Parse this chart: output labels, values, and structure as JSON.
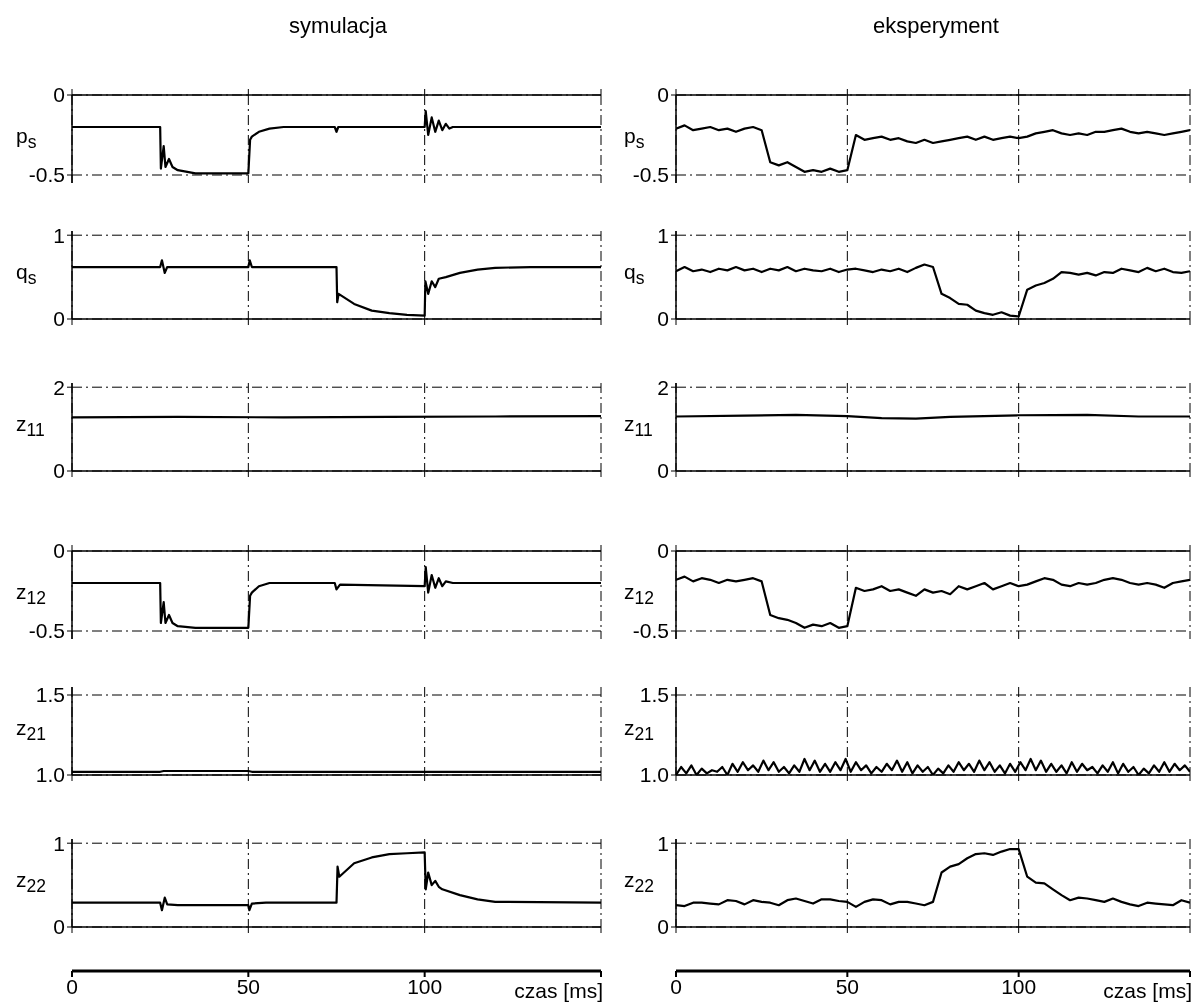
{
  "chart_data": [
    {
      "type": "line",
      "title": "symulacja",
      "ylabel": "p$_{s}$",
      "color": "#000000",
      "grid": true,
      "tick_labels": "y",
      "xlim": [
        0,
        150
      ],
      "xticks": [
        {
          "value": 0,
          "label": null
        },
        {
          "value": 50,
          "label": null
        },
        {
          "value": 100,
          "label": null
        },
        {
          "value": 150,
          "label": null
        }
      ],
      "ylim": [
        -0.55,
        0
      ],
      "yticks": [
        -0.5,
        0
      ],
      "x": [
        0,
        25,
        25.2,
        26,
        26.5,
        27.5,
        28.5,
        30,
        35,
        50,
        50.5,
        51,
        53,
        56,
        60,
        74.5,
        75,
        75.5,
        100,
        100.3,
        101,
        102,
        103,
        104,
        105,
        106,
        107,
        108,
        150
      ],
      "values": [
        -0.2,
        -0.2,
        -0.46,
        -0.32,
        -0.45,
        -0.4,
        -0.45,
        -0.47,
        -0.49,
        -0.49,
        -0.28,
        -0.26,
        -0.23,
        -0.21,
        -0.2,
        -0.2,
        -0.23,
        -0.2,
        -0.2,
        -0.1,
        -0.25,
        -0.14,
        -0.23,
        -0.16,
        -0.22,
        -0.18,
        -0.21,
        -0.2,
        -0.2
      ]
    },
    {
      "type": "line",
      "ylabel": "q$_{s}$",
      "color": "#000000",
      "grid": true,
      "tick_labels": "y",
      "xlim": [
        0,
        150
      ],
      "xticks": [
        {
          "value": 0,
          "label": null
        },
        {
          "value": 50,
          "label": null
        },
        {
          "value": 100,
          "label": null
        },
        {
          "value": 150,
          "label": null
        }
      ],
      "ylim": [
        0,
        1.05
      ],
      "yticks": [
        0,
        1
      ],
      "x": [
        0,
        25,
        25.5,
        26.3,
        27,
        50,
        50.4,
        51,
        75,
        75.2,
        75.6,
        80,
        85,
        90,
        95,
        100,
        100.2,
        101,
        102,
        103,
        104,
        106,
        110,
        115,
        120,
        130,
        150
      ],
      "values": [
        0.62,
        0.62,
        0.7,
        0.55,
        0.62,
        0.62,
        0.7,
        0.62,
        0.62,
        0.2,
        0.3,
        0.18,
        0.1,
        0.07,
        0.05,
        0.04,
        0.45,
        0.3,
        0.45,
        0.38,
        0.48,
        0.5,
        0.55,
        0.59,
        0.61,
        0.62,
        0.62
      ]
    },
    {
      "type": "line",
      "ylabel": "z$_{11}$",
      "color": "#000000",
      "grid": true,
      "tick_labels": "y",
      "xlim": [
        0,
        150
      ],
      "xticks": [
        {
          "value": 0,
          "label": null
        },
        {
          "value": 50,
          "label": null
        },
        {
          "value": 100,
          "label": null
        },
        {
          "value": 150,
          "label": null
        }
      ],
      "ylim": [
        0,
        2.1
      ],
      "yticks": [
        0,
        2
      ],
      "x": [
        0,
        30,
        60,
        90,
        120,
        150
      ],
      "values": [
        1.28,
        1.29,
        1.28,
        1.29,
        1.3,
        1.31
      ]
    },
    {
      "type": "line",
      "ylabel": "z$_{12}$",
      "color": "#000000",
      "grid": true,
      "tick_labels": "y",
      "xlim": [
        0,
        150
      ],
      "xticks": [
        {
          "value": 0,
          "label": null
        },
        {
          "value": 50,
          "label": null
        },
        {
          "value": 100,
          "label": null
        },
        {
          "value": 150,
          "label": null
        }
      ],
      "ylim": [
        -0.55,
        0
      ],
      "yticks": [
        -0.5,
        0
      ],
      "x": [
        0,
        25,
        25.2,
        26,
        26.5,
        27.5,
        28.5,
        30,
        35,
        50,
        50.5,
        51,
        53,
        56,
        74.5,
        75,
        76,
        100,
        100.3,
        101,
        102,
        103,
        104,
        105,
        106,
        108,
        150
      ],
      "values": [
        -0.2,
        -0.2,
        -0.45,
        -0.32,
        -0.45,
        -0.4,
        -0.45,
        -0.47,
        -0.48,
        -0.48,
        -0.28,
        -0.26,
        -0.22,
        -0.2,
        -0.2,
        -0.24,
        -0.21,
        -0.22,
        -0.1,
        -0.26,
        -0.15,
        -0.23,
        -0.17,
        -0.22,
        -0.19,
        -0.2,
        -0.2
      ]
    },
    {
      "type": "line",
      "ylabel": "z$_{21}$",
      "color": "#000000",
      "grid": true,
      "tick_labels": "y",
      "xlim": [
        0,
        150
      ],
      "xticks": [
        {
          "value": 0,
          "label": null
        },
        {
          "value": 50,
          "label": null
        },
        {
          "value": 100,
          "label": null
        },
        {
          "value": 150,
          "label": null
        }
      ],
      "ylim": [
        1,
        1.55
      ],
      "yticks": [
        {
          "value": 1,
          "label": "1.0"
        },
        1.5
      ],
      "x": [
        0,
        25,
        26,
        50,
        51,
        150
      ],
      "values": [
        1.02,
        1.02,
        1.025,
        1.025,
        1.02,
        1.02
      ]
    },
    {
      "type": "line",
      "ylabel": "z$_{22}$",
      "xlabel": "czas [ms]",
      "color": "#000000",
      "grid": true,
      "xlim": [
        0,
        150
      ],
      "xticks": [
        0,
        50,
        100,
        {
          "value": 150,
          "label": null
        }
      ],
      "ylim": [
        0,
        1.05
      ],
      "yticks": [
        0,
        1
      ],
      "x": [
        0,
        25,
        25.5,
        26.3,
        27,
        30,
        50,
        50.3,
        51,
        55,
        75,
        75.3,
        75.8,
        80,
        85,
        90,
        95,
        100,
        100.3,
        101,
        102,
        103,
        104,
        105,
        110,
        115,
        120,
        150
      ],
      "values": [
        0.29,
        0.29,
        0.2,
        0.35,
        0.27,
        0.26,
        0.26,
        0.2,
        0.28,
        0.29,
        0.29,
        0.72,
        0.6,
        0.76,
        0.83,
        0.87,
        0.88,
        0.89,
        0.45,
        0.65,
        0.5,
        0.55,
        0.48,
        0.45,
        0.38,
        0.33,
        0.3,
        0.29
      ]
    },
    {
      "type": "line",
      "title": "eksperyment",
      "ylabel": "p$_{s}$",
      "color": "#000000",
      "grid": true,
      "tick_labels": "y",
      "xlim": [
        0,
        150
      ],
      "xticks": [
        {
          "value": 0,
          "label": null
        },
        {
          "value": 50,
          "label": null
        },
        {
          "value": 100,
          "label": null
        },
        {
          "value": 150,
          "label": null
        }
      ],
      "ylim": [
        -0.55,
        0
      ],
      "yticks": [
        -0.5,
        0
      ],
      "x": [
        0,
        2.5,
        5,
        7.5,
        10,
        12.5,
        15,
        17.5,
        20,
        22.5,
        25,
        27.5,
        30,
        32.5,
        35,
        37.5,
        40,
        42.5,
        45,
        47.5,
        50,
        52.5,
        55,
        57.5,
        60,
        62.5,
        65,
        67.5,
        70,
        72.5,
        75,
        77.5,
        80,
        82.5,
        85,
        87.5,
        90,
        92.5,
        95,
        97.5,
        100,
        102.5,
        105,
        107.5,
        110,
        112.5,
        115,
        117.5,
        120,
        122.5,
        125,
        127.5,
        130,
        132.5,
        135,
        137.5,
        140,
        142.5,
        145,
        147.5,
        150
      ],
      "values": [
        -0.21,
        -0.19,
        -0.22,
        -0.21,
        -0.2,
        -0.22,
        -0.21,
        -0.23,
        -0.21,
        -0.2,
        -0.22,
        -0.42,
        -0.44,
        -0.42,
        -0.45,
        -0.48,
        -0.47,
        -0.48,
        -0.46,
        -0.48,
        -0.47,
        -0.25,
        -0.28,
        -0.27,
        -0.26,
        -0.28,
        -0.27,
        -0.29,
        -0.3,
        -0.28,
        -0.3,
        -0.29,
        -0.28,
        -0.27,
        -0.26,
        -0.28,
        -0.26,
        -0.28,
        -0.27,
        -0.26,
        -0.27,
        -0.26,
        -0.24,
        -0.23,
        -0.22,
        -0.24,
        -0.25,
        -0.24,
        -0.25,
        -0.23,
        -0.23,
        -0.22,
        -0.21,
        -0.23,
        -0.24,
        -0.23,
        -0.24,
        -0.25,
        -0.24,
        -0.23,
        -0.22
      ]
    },
    {
      "type": "line",
      "ylabel": "q$_{s}$",
      "color": "#000000",
      "grid": true,
      "tick_labels": "y",
      "xlim": [
        0,
        150
      ],
      "xticks": [
        {
          "value": 0,
          "label": null
        },
        {
          "value": 50,
          "label": null
        },
        {
          "value": 100,
          "label": null
        },
        {
          "value": 150,
          "label": null
        }
      ],
      "ylim": [
        0,
        1.05
      ],
      "yticks": [
        0,
        1
      ],
      "x": [
        0,
        2.5,
        5,
        7.5,
        10,
        12.5,
        15,
        17.5,
        20,
        22.5,
        25,
        27.5,
        30,
        32.5,
        35,
        37.5,
        40,
        42.5,
        45,
        47.5,
        50,
        52.5,
        55,
        57.5,
        60,
        62.5,
        65,
        67.5,
        70,
        72.5,
        75,
        77.5,
        80,
        82.5,
        85,
        87.5,
        90,
        92.5,
        95,
        97.5,
        100,
        102.5,
        105,
        107.5,
        110,
        112.5,
        115,
        117.5,
        120,
        122.5,
        125,
        127.5,
        130,
        132.5,
        135,
        137.5,
        140,
        142.5,
        145,
        147.5,
        150
      ],
      "values": [
        0.57,
        0.62,
        0.57,
        0.59,
        0.56,
        0.6,
        0.58,
        0.62,
        0.58,
        0.6,
        0.56,
        0.6,
        0.58,
        0.62,
        0.57,
        0.6,
        0.58,
        0.57,
        0.6,
        0.56,
        0.59,
        0.6,
        0.58,
        0.56,
        0.59,
        0.57,
        0.6,
        0.56,
        0.61,
        0.65,
        0.62,
        0.3,
        0.25,
        0.18,
        0.17,
        0.1,
        0.07,
        0.05,
        0.08,
        0.04,
        0.03,
        0.35,
        0.4,
        0.43,
        0.48,
        0.56,
        0.55,
        0.53,
        0.55,
        0.52,
        0.56,
        0.55,
        0.6,
        0.58,
        0.56,
        0.61,
        0.57,
        0.6,
        0.56,
        0.55,
        0.57
      ]
    },
    {
      "type": "line",
      "ylabel": "z$_{11}$",
      "color": "#000000",
      "grid": true,
      "tick_labels": "y",
      "xlim": [
        0,
        150
      ],
      "xticks": [
        {
          "value": 0,
          "label": null
        },
        {
          "value": 50,
          "label": null
        },
        {
          "value": 100,
          "label": null
        },
        {
          "value": 150,
          "label": null
        }
      ],
      "ylim": [
        0,
        2.1
      ],
      "yticks": [
        0,
        2
      ],
      "x": [
        0,
        20,
        35,
        50,
        60,
        70,
        80,
        100,
        120,
        135,
        150
      ],
      "values": [
        1.3,
        1.32,
        1.34,
        1.31,
        1.26,
        1.25,
        1.29,
        1.33,
        1.34,
        1.3,
        1.3
      ]
    },
    {
      "type": "line",
      "ylabel": "z$_{12}$",
      "color": "#000000",
      "grid": true,
      "tick_labels": "y",
      "xlim": [
        0,
        150
      ],
      "xticks": [
        {
          "value": 0,
          "label": null
        },
        {
          "value": 50,
          "label": null
        },
        {
          "value": 100,
          "label": null
        },
        {
          "value": 150,
          "label": null
        }
      ],
      "ylim": [
        -0.55,
        0
      ],
      "yticks": [
        -0.5,
        0
      ],
      "x": [
        0,
        2.5,
        5,
        7.5,
        10,
        12.5,
        15,
        17.5,
        20,
        22.5,
        25,
        27.5,
        30,
        32.5,
        35,
        37.5,
        40,
        42.5,
        45,
        47.5,
        50,
        52.5,
        55,
        57.5,
        60,
        62.5,
        65,
        67.5,
        70,
        72.5,
        75,
        77.5,
        80,
        82.5,
        85,
        87.5,
        90,
        92.5,
        95,
        97.5,
        100,
        102.5,
        105,
        107.5,
        110,
        112.5,
        115,
        117.5,
        120,
        122.5,
        125,
        127.5,
        130,
        132.5,
        135,
        137.5,
        140,
        142.5,
        145,
        147.5,
        150
      ],
      "values": [
        -0.18,
        -0.16,
        -0.19,
        -0.17,
        -0.18,
        -0.2,
        -0.18,
        -0.19,
        -0.18,
        -0.17,
        -0.19,
        -0.4,
        -0.42,
        -0.43,
        -0.45,
        -0.48,
        -0.46,
        -0.47,
        -0.45,
        -0.48,
        -0.47,
        -0.23,
        -0.25,
        -0.24,
        -0.22,
        -0.25,
        -0.24,
        -0.26,
        -0.28,
        -0.24,
        -0.26,
        -0.25,
        -0.27,
        -0.22,
        -0.24,
        -0.22,
        -0.2,
        -0.24,
        -0.22,
        -0.2,
        -0.22,
        -0.21,
        -0.19,
        -0.17,
        -0.18,
        -0.21,
        -0.22,
        -0.2,
        -0.21,
        -0.2,
        -0.18,
        -0.17,
        -0.18,
        -0.2,
        -0.21,
        -0.2,
        -0.21,
        -0.23,
        -0.2,
        -0.19,
        -0.18
      ]
    },
    {
      "type": "line",
      "ylabel": "z$_{21}$",
      "color": "#000000",
      "grid": true,
      "tick_labels": "y",
      "xlim": [
        0,
        150
      ],
      "xticks": [
        {
          "value": 0,
          "label": null
        },
        {
          "value": 50,
          "label": null
        },
        {
          "value": 100,
          "label": null
        },
        {
          "value": 150,
          "label": null
        }
      ],
      "ylim": [
        1,
        1.55
      ],
      "yticks": [
        {
          "value": 1,
          "label": "1.0"
        },
        1.5
      ],
      "x": [
        0,
        1.5,
        3,
        4.5,
        6,
        7.5,
        9,
        10.5,
        12,
        13.5,
        15,
        16.5,
        18,
        19.5,
        21,
        22.5,
        24,
        25.5,
        27,
        28.5,
        30,
        31.5,
        33,
        34.5,
        36,
        37.5,
        39,
        40.5,
        42,
        43.5,
        45,
        46.5,
        48,
        49.5,
        51,
        52.5,
        54,
        55.5,
        57,
        58.5,
        60,
        61.5,
        63,
        64.5,
        66,
        67.5,
        69,
        70.5,
        72,
        73.5,
        75,
        76.5,
        78,
        79.5,
        81,
        82.5,
        84,
        85.5,
        87,
        88.5,
        90,
        91.5,
        93,
        94.5,
        96,
        97.5,
        99,
        100.5,
        102,
        103.5,
        105,
        106.5,
        108,
        109.5,
        111,
        112.5,
        114,
        115.5,
        117,
        118.5,
        120,
        121.5,
        123,
        124.5,
        126,
        127.5,
        129,
        130.5,
        132,
        133.5,
        135,
        136.5,
        138,
        139.5,
        141,
        142.5,
        144,
        145.5,
        147,
        148.5,
        150
      ],
      "values": [
        1.0,
        1.05,
        1.01,
        1.06,
        1.0,
        1.04,
        1.01,
        1.03,
        1.02,
        1.05,
        1.0,
        1.07,
        1.02,
        1.08,
        1.03,
        1.06,
        1.02,
        1.09,
        1.03,
        1.08,
        1.02,
        1.05,
        1.01,
        1.06,
        1.02,
        1.1,
        1.03,
        1.09,
        1.02,
        1.07,
        1.02,
        1.08,
        1.03,
        1.1,
        1.02,
        1.08,
        1.03,
        1.06,
        1.01,
        1.05,
        1.02,
        1.07,
        1.03,
        1.09,
        1.02,
        1.08,
        1.01,
        1.06,
        1.02,
        1.05,
        1.0,
        1.04,
        1.01,
        1.06,
        1.02,
        1.08,
        1.03,
        1.07,
        1.02,
        1.09,
        1.03,
        1.08,
        1.02,
        1.06,
        1.01,
        1.07,
        1.02,
        1.08,
        1.03,
        1.1,
        1.03,
        1.09,
        1.02,
        1.07,
        1.02,
        1.06,
        1.01,
        1.08,
        1.02,
        1.07,
        1.03,
        1.05,
        1.01,
        1.06,
        1.02,
        1.08,
        1.01,
        1.07,
        1.02,
        1.05,
        1.0,
        1.04,
        1.01,
        1.06,
        1.02,
        1.08,
        1.02,
        1.07,
        1.03,
        1.06,
        1.02
      ]
    },
    {
      "type": "line",
      "ylabel": "z$_{22}$",
      "xlabel": "czas [ms]",
      "color": "#000000",
      "grid": true,
      "xlim": [
        0,
        150
      ],
      "xticks": [
        0,
        50,
        100,
        {
          "value": 150,
          "label": null
        }
      ],
      "ylim": [
        0,
        1.05
      ],
      "yticks": [
        0,
        1
      ],
      "x": [
        0,
        2.5,
        5,
        7.5,
        10,
        12.5,
        15,
        17.5,
        20,
        22.5,
        25,
        27.5,
        30,
        32.5,
        35,
        37.5,
        40,
        42.5,
        45,
        47.5,
        50,
        52.5,
        55,
        57.5,
        60,
        62.5,
        65,
        67.5,
        70,
        72.5,
        75,
        77.5,
        80,
        82.5,
        85,
        87.5,
        90,
        92.5,
        95,
        97.5,
        100,
        102.5,
        105,
        107.5,
        110,
        112.5,
        115,
        117.5,
        120,
        122.5,
        125,
        127.5,
        130,
        132.5,
        135,
        137.5,
        140,
        142.5,
        145,
        147.5,
        150
      ],
      "values": [
        0.26,
        0.25,
        0.29,
        0.29,
        0.28,
        0.27,
        0.32,
        0.31,
        0.27,
        0.32,
        0.3,
        0.29,
        0.26,
        0.32,
        0.34,
        0.31,
        0.28,
        0.33,
        0.33,
        0.31,
        0.3,
        0.24,
        0.3,
        0.33,
        0.32,
        0.27,
        0.3,
        0.3,
        0.28,
        0.26,
        0.3,
        0.65,
        0.72,
        0.75,
        0.82,
        0.87,
        0.88,
        0.86,
        0.9,
        0.93,
        0.93,
        0.6,
        0.53,
        0.52,
        0.45,
        0.38,
        0.32,
        0.35,
        0.34,
        0.32,
        0.3,
        0.34,
        0.3,
        0.27,
        0.25,
        0.29,
        0.28,
        0.27,
        0.26,
        0.32,
        0.29
      ]
    }
  ]
}
